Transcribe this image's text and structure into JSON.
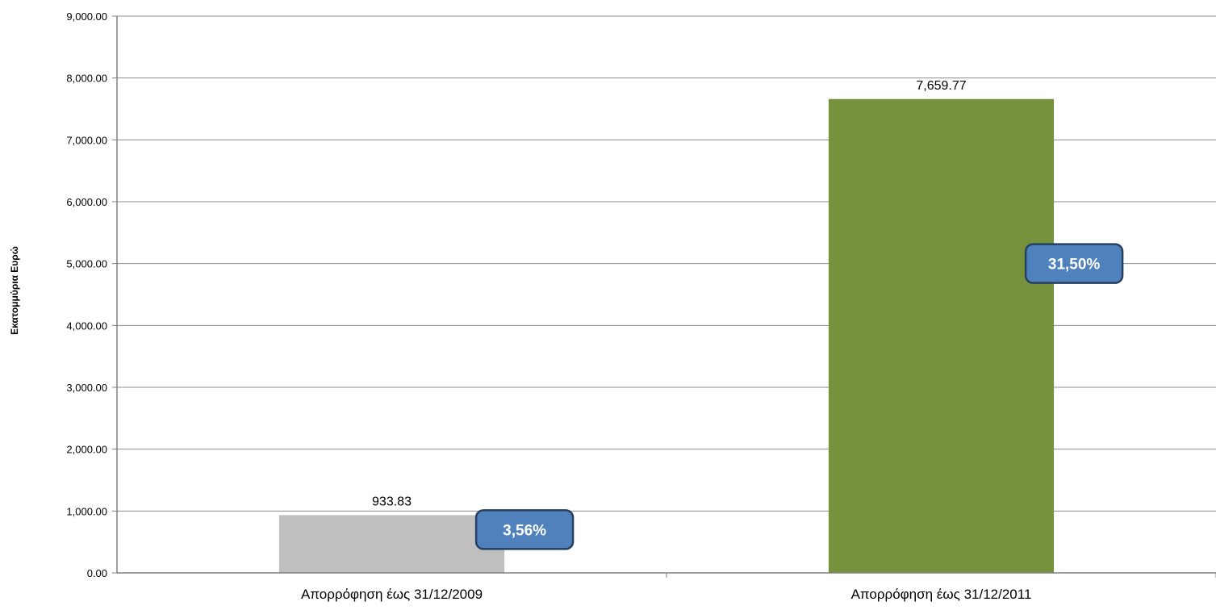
{
  "chart_data": {
    "type": "bar",
    "title": "",
    "xlabel": "",
    "ylabel": "Εκατομμύρια Ευρώ",
    "ylim": [
      0,
      9000
    ],
    "yticks": [
      0,
      1000,
      2000,
      3000,
      4000,
      5000,
      6000,
      7000,
      8000,
      9000
    ],
    "ytick_labels": [
      "0.00",
      "1,000.00",
      "2,000.00",
      "3,000.00",
      "4,000.00",
      "5,000.00",
      "6,000.00",
      "7,000.00",
      "8,000.00",
      "9,000.00"
    ],
    "grid": true,
    "legend": "none",
    "categories": [
      "Απορρόφηση έως 31/12/2009",
      "Απορρόφηση έως 31/12/2011"
    ],
    "values": [
      933.83,
      7659.77
    ],
    "value_labels": [
      "933.83",
      "7,659.77"
    ],
    "bar_colors": [
      "#bfbfbf",
      "#76923c"
    ],
    "annotations": [
      {
        "category_index": 0,
        "text": "3,56%",
        "at_value": 700
      },
      {
        "category_index": 1,
        "text": "31,50%",
        "at_value": 5000
      }
    ],
    "annotation_color": "#4f81bd",
    "annotation_border_color": "#254061"
  }
}
